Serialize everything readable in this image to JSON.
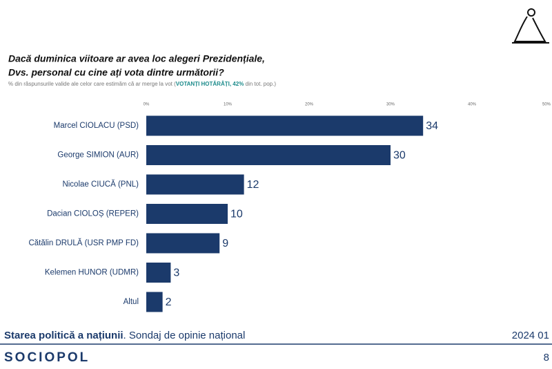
{
  "chart_data": {
    "type": "hbar",
    "title": [
      "Dacă duminica viitoare ar avea loc alegeri Prezidențiale,",
      "Dvs. personal cu cine ați vota dintre următorii?"
    ],
    "subtitle": [
      "% din răspunsurile valide ale celor care estimăm că ar merge la vot (",
      "VOTANȚI HOTĂRÂȚI, 42%",
      " din tot. pop.)"
    ],
    "categories": [
      "Marcel CIOLACU (PSD)",
      "George SIMION (AUR)",
      "Nicolae CIUCĂ (PNL)",
      "Dacian CIOLOȘ (REPER)",
      "Cătălin DRULĂ (USR PMP FD)",
      "Kelemen HUNOR (UDMR)",
      "Altul"
    ],
    "values": [
      34,
      30,
      12,
      10,
      9,
      3,
      2
    ],
    "color": "#1b3a6b",
    "xlim": [
      0,
      50
    ],
    "xticks": [
      {
        "value": 0,
        "label": "0%"
      },
      {
        "value": 10,
        "label": "10%"
      },
      {
        "value": 20,
        "label": "20%"
      },
      {
        "value": 30,
        "label": "30%"
      },
      {
        "value": 40,
        "label": "40%"
      },
      {
        "value": 50,
        "label": "50%"
      }
    ]
  },
  "footer": {
    "title_bold": "Starea politică a națiunii",
    "title_rest": ". Sondaj de opinie național",
    "date": "2024 01",
    "brand": "SOCIOPOL",
    "page": "8"
  }
}
